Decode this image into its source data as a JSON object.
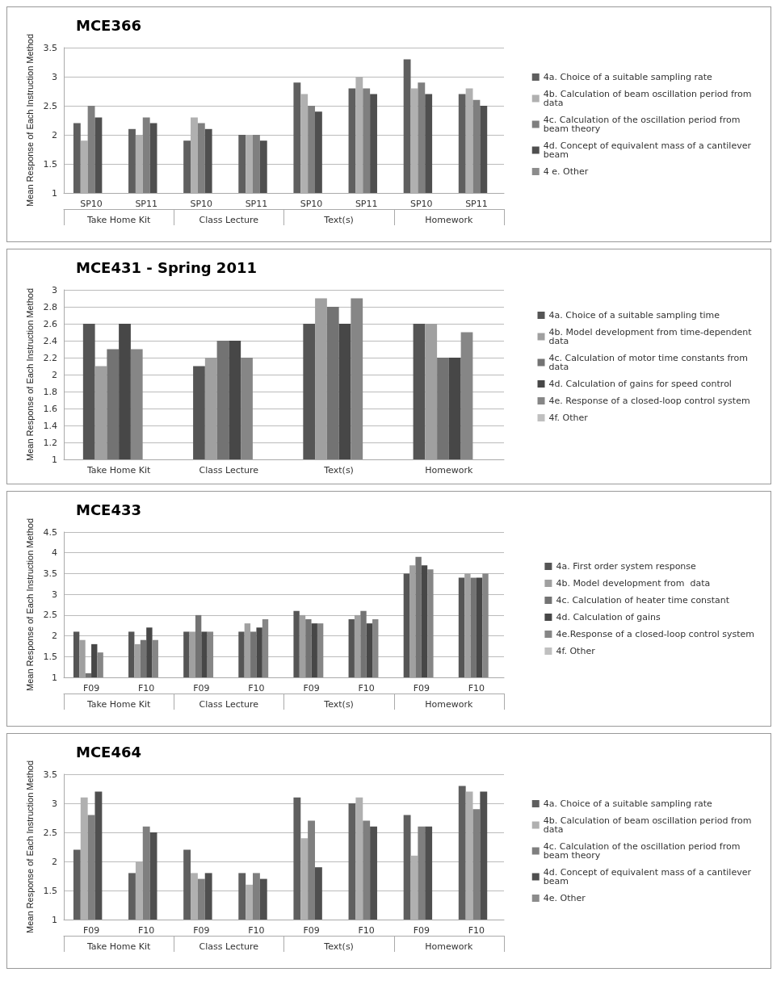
{
  "chart_data": [
    {
      "type": "bar",
      "title": "MCE366",
      "ylabel": "Mean Response of Each Instruction Method",
      "categories": [
        "SP10",
        "SP11",
        "SP10",
        "SP11",
        "SP10",
        "SP11",
        "SP10",
        "SP11"
      ],
      "annotations": [
        "Take Home Kit",
        "Class Lecture",
        "Text(s)",
        "Homework"
      ],
      "ylim": [
        1,
        3.5
      ],
      "yticks": [
        1,
        1.5,
        2,
        2.5,
        3,
        3.5
      ],
      "grid": "y",
      "legend": "right",
      "series": [
        {
          "name": "4a. Choice of a suitable sampling rate",
          "color": "#5f5f5f",
          "values": [
            2.2,
            2.1,
            1.9,
            2.0,
            2.9,
            2.8,
            3.3,
            2.7
          ]
        },
        {
          "name": "4b. Calculation of beam oscillation period from data",
          "color": "#b0b0b0",
          "values": [
            1.9,
            2.0,
            2.3,
            2.0,
            2.7,
            3.0,
            2.8,
            2.8
          ]
        },
        {
          "name": "4c. Calculation of the oscillation period from beam theory",
          "color": "#7f7f7f",
          "values": [
            2.5,
            2.3,
            2.2,
            2.0,
            2.5,
            2.8,
            2.9,
            2.6
          ]
        },
        {
          "name": "4d. Concept of equivalent mass of a cantilever beam",
          "color": "#4f4f4f",
          "values": [
            2.3,
            2.2,
            2.1,
            1.9,
            2.4,
            2.7,
            2.7,
            2.5
          ]
        },
        {
          "name": "4 e. Other",
          "color": "#8c8c8c",
          "values": [
            null,
            null,
            null,
            null,
            null,
            null,
            null,
            null
          ]
        }
      ]
    },
    {
      "type": "bar",
      "title": "MCE431 - Spring 2011",
      "ylabel": "Mean Response of Each Instruction Method",
      "categories": [
        "Take Home Kit",
        "Class Lecture",
        "Text(s)",
        "Homework"
      ],
      "ylim": [
        1,
        3
      ],
      "yticks": [
        1,
        1.2,
        1.4,
        1.6,
        1.8,
        2,
        2.2,
        2.4,
        2.6,
        2.8,
        3
      ],
      "grid": "y",
      "legend": "right",
      "series": [
        {
          "name": "4a. Choice of a suitable sampling time",
          "color": "#555555",
          "values": [
            2.6,
            2.1,
            2.6,
            2.6
          ]
        },
        {
          "name": "4b. Model development from time-dependent data",
          "color": "#a0a0a0",
          "values": [
            2.1,
            2.2,
            2.9,
            2.6
          ]
        },
        {
          "name": "4c. Calculation of motor time constants from data",
          "color": "#737373",
          "values": [
            2.3,
            2.4,
            2.8,
            2.2
          ]
        },
        {
          "name": "4d. Calculation of gains for speed control",
          "color": "#474747",
          "values": [
            2.6,
            2.4,
            2.6,
            2.2
          ]
        },
        {
          "name": "4e. Response of a closed-loop control system",
          "color": "#868686",
          "values": [
            2.3,
            2.2,
            2.9,
            2.5
          ]
        },
        {
          "name": "4f. Other",
          "color": "#c0c0c0",
          "values": [
            1,
            1,
            1,
            1
          ]
        }
      ]
    },
    {
      "type": "bar",
      "title": "MCE433",
      "ylabel": "Mean Response of Each Instruction Method",
      "categories": [
        "F09",
        "F10",
        "F09",
        "F10",
        "F09",
        "F10",
        "F09",
        "F10"
      ],
      "annotations": [
        "Take Home Kit",
        "Class Lecture",
        "Text(s)",
        "Homework"
      ],
      "ylim": [
        1,
        4.5
      ],
      "yticks": [
        1,
        1.5,
        2,
        2.5,
        3,
        3.5,
        4,
        4.5
      ],
      "grid": "y",
      "legend": "right",
      "series": [
        {
          "name": "4a. First order system response",
          "color": "#555555",
          "values": [
            2.1,
            2.1,
            2.1,
            2.1,
            2.6,
            2.4,
            3.5,
            3.4
          ]
        },
        {
          "name": "4b. Model development from  data",
          "color": "#a0a0a0",
          "values": [
            1.9,
            1.8,
            2.1,
            2.3,
            2.5,
            2.5,
            3.7,
            3.5
          ]
        },
        {
          "name": "4c. Calculation of heater time constant",
          "color": "#737373",
          "values": [
            1.1,
            1.9,
            2.5,
            2.1,
            2.4,
            2.6,
            3.9,
            3.4
          ]
        },
        {
          "name": "4d. Calculation of gains",
          "color": "#474747",
          "values": [
            1.8,
            2.2,
            2.1,
            2.2,
            2.3,
            2.3,
            3.7,
            3.4
          ]
        },
        {
          "name": "4e.Response of a closed-loop control system",
          "color": "#868686",
          "values": [
            1.6,
            1.9,
            2.1,
            2.4,
            2.3,
            2.4,
            3.6,
            3.5
          ]
        },
        {
          "name": "4f. Other",
          "color": "#c0c0c0",
          "values": [
            1,
            1,
            1,
            1,
            1,
            1,
            1,
            1
          ]
        }
      ]
    },
    {
      "type": "bar",
      "title": "MCE464",
      "ylabel": "Mean Response of Each Instruction Method",
      "categories": [
        "F09",
        "F10",
        "F09",
        "F10",
        "F09",
        "F10",
        "F09",
        "F10"
      ],
      "annotations": [
        "Take Home Kit",
        "Class Lecture",
        "Text(s)",
        "Homework"
      ],
      "ylim": [
        1,
        3.5
      ],
      "yticks": [
        1,
        1.5,
        2,
        2.5,
        3,
        3.5
      ],
      "grid": "y",
      "legend": "right",
      "series": [
        {
          "name": "4a. Choice of a suitable sampling rate",
          "color": "#5f5f5f",
          "values": [
            2.2,
            1.8,
            2.2,
            1.8,
            3.1,
            3.0,
            2.8,
            3.3
          ]
        },
        {
          "name": "4b. Calculation of beam oscillation period from data",
          "color": "#b0b0b0",
          "values": [
            3.1,
            2.0,
            1.8,
            1.6,
            2.4,
            3.1,
            2.1,
            3.2
          ]
        },
        {
          "name": "4c. Calculation of the oscillation period from beam theory",
          "color": "#7f7f7f",
          "values": [
            2.8,
            2.6,
            1.7,
            1.8,
            2.7,
            2.7,
            2.6,
            2.9
          ]
        },
        {
          "name": "4d. Concept of equivalent mass of a cantilever beam",
          "color": "#4f4f4f",
          "values": [
            3.2,
            2.5,
            1.8,
            1.7,
            1.9,
            2.6,
            2.6,
            3.2
          ]
        },
        {
          "name": "4e. Other",
          "color": "#8c8c8c",
          "values": [
            1,
            1,
            1,
            1,
            1,
            1,
            1,
            1
          ]
        }
      ]
    }
  ]
}
